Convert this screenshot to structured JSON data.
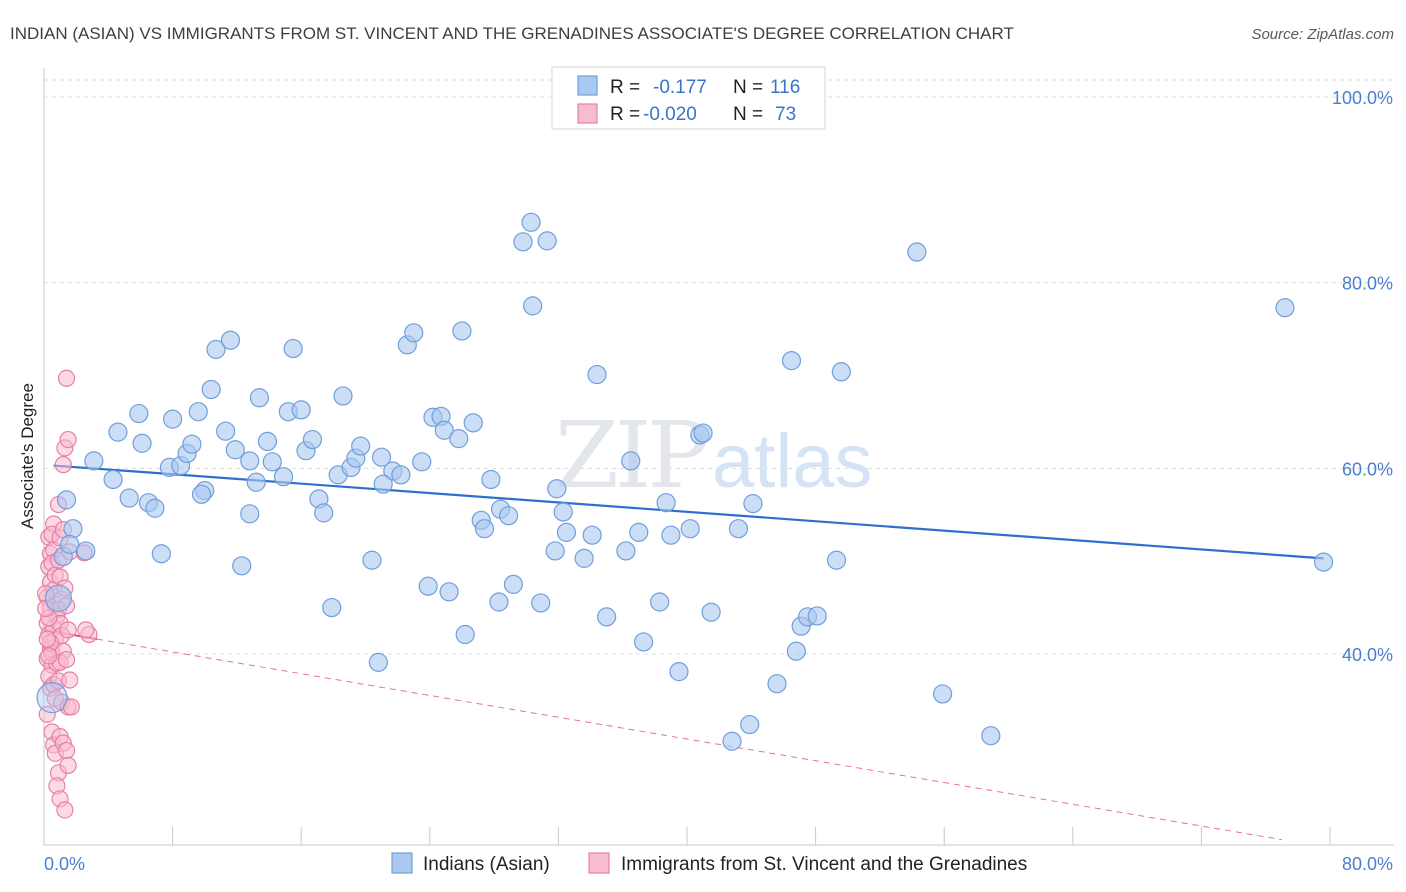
{
  "title": "INDIAN (ASIAN) VS IMMIGRANTS FROM ST. VINCENT AND THE GRENADINES ASSOCIATE'S DEGREE CORRELATION CHART",
  "source": "Source: ZipAtlas.com",
  "watermark": {
    "zip": "ZIP",
    "atlas": "atlas"
  },
  "legend": {
    "rows": [
      {
        "r_label": "R =",
        "r_value": "-0.177",
        "n_label": "N =",
        "n_value": "116"
      },
      {
        "r_label": "R =",
        "r_value": "-0.020",
        "n_label": "N =",
        "n_value": "73"
      }
    ]
  },
  "bottom_legend": [
    "Indians (Asian)",
    "Immigrants from St. Vincent and the Grenadines"
  ],
  "colors": {
    "blue_fill": "#aac8f0",
    "blue_stroke": "#6f9fdc",
    "blue_line": "#2f6fcc",
    "pink_fill": "#f7bcd0",
    "pink_stroke": "#e87fa5",
    "pink_line": "#e0507f",
    "grid": "#dcdcdc",
    "tick_text": "#4a7fd0"
  },
  "chart_data": {
    "type": "scatter",
    "title": "INDIAN (ASIAN) VS IMMIGRANTS FROM ST. VINCENT AND THE GRENADINES ASSOCIATE'S DEGREE CORRELATION CHART",
    "xlabel": "",
    "ylabel": "Associate's Degree",
    "xlim": [
      0,
      80
    ],
    "ylim": [
      20,
      102
    ],
    "x_tick_labels": [
      "0.0%",
      "80.0%"
    ],
    "y_ticks": [
      40,
      60,
      80,
      100
    ],
    "y_tick_labels": [
      "40.0%",
      "60.0%",
      "80.0%",
      "100.0%"
    ],
    "grid": true,
    "legend_position": "top-center",
    "series": [
      {
        "name": "Indians (Asian)",
        "color": "#6f9fdc",
        "r": -0.177,
        "n": 116,
        "trend": {
          "x": [
            0.6,
            79.6
          ],
          "y": [
            60.3,
            50.3
          ],
          "style": "solid"
        },
        "points": [
          [
            1.8,
            53.5
          ],
          [
            1.2,
            50.5
          ],
          [
            1.6,
            51.8
          ],
          [
            3.1,
            60.8
          ],
          [
            4.6,
            63.9
          ],
          [
            4.3,
            58.8
          ],
          [
            5.3,
            56.8
          ],
          [
            5.9,
            65.9
          ],
          [
            6.1,
            62.7
          ],
          [
            6.5,
            56.3
          ],
          [
            6.9,
            55.7
          ],
          [
            7.3,
            50.8
          ],
          [
            7.8,
            60.1
          ],
          [
            8.0,
            65.3
          ],
          [
            8.5,
            60.3
          ],
          [
            8.9,
            61.6
          ],
          [
            9.2,
            62.6
          ],
          [
            9.6,
            66.1
          ],
          [
            10.0,
            57.6
          ],
          [
            10.4,
            68.5
          ],
          [
            10.7,
            72.8
          ],
          [
            11.3,
            64.0
          ],
          [
            11.6,
            73.8
          ],
          [
            11.9,
            62.0
          ],
          [
            12.3,
            49.5
          ],
          [
            12.8,
            60.8
          ],
          [
            13.2,
            58.5
          ],
          [
            13.4,
            67.6
          ],
          [
            13.9,
            62.9
          ],
          [
            14.2,
            60.7
          ],
          [
            14.9,
            59.1
          ],
          [
            15.2,
            66.1
          ],
          [
            15.5,
            72.9
          ],
          [
            16.0,
            66.3
          ],
          [
            16.3,
            61.9
          ],
          [
            16.7,
            63.1
          ],
          [
            17.1,
            56.7
          ],
          [
            17.4,
            55.2
          ],
          [
            17.9,
            45.0
          ],
          [
            18.3,
            59.3
          ],
          [
            18.6,
            67.8
          ],
          [
            19.1,
            60.1
          ],
          [
            19.4,
            61.1
          ],
          [
            19.7,
            62.4
          ],
          [
            20.4,
            50.1
          ],
          [
            20.8,
            39.1
          ],
          [
            21.0,
            61.2
          ],
          [
            21.7,
            59.7
          ],
          [
            22.2,
            59.3
          ],
          [
            22.6,
            73.3
          ],
          [
            23.0,
            74.6
          ],
          [
            23.5,
            60.7
          ],
          [
            23.9,
            47.3
          ],
          [
            24.2,
            65.5
          ],
          [
            24.7,
            65.6
          ],
          [
            24.9,
            64.1
          ],
          [
            25.2,
            46.7
          ],
          [
            25.8,
            63.2
          ],
          [
            26.2,
            42.1
          ],
          [
            26.0,
            74.8
          ],
          [
            26.7,
            64.9
          ],
          [
            27.2,
            54.4
          ],
          [
            27.4,
            53.5
          ],
          [
            27.8,
            58.8
          ],
          [
            28.3,
            45.6
          ],
          [
            28.4,
            55.6
          ],
          [
            28.9,
            54.9
          ],
          [
            29.2,
            47.5
          ],
          [
            29.8,
            84.4
          ],
          [
            30.3,
            86.5
          ],
          [
            30.4,
            77.5
          ],
          [
            30.9,
            45.5
          ],
          [
            31.3,
            84.5
          ],
          [
            31.8,
            51.1
          ],
          [
            31.9,
            57.8
          ],
          [
            32.3,
            55.3
          ],
          [
            32.5,
            53.1
          ],
          [
            34.1,
            52.8
          ],
          [
            34.4,
            70.1
          ],
          [
            35.0,
            44.0
          ],
          [
            36.2,
            51.1
          ],
          [
            36.5,
            60.8
          ],
          [
            37.0,
            53.1
          ],
          [
            37.3,
            41.3
          ],
          [
            38.3,
            45.6
          ],
          [
            38.7,
            56.3
          ],
          [
            39.0,
            52.8
          ],
          [
            39.5,
            38.1
          ],
          [
            40.2,
            53.5
          ],
          [
            40.8,
            63.6
          ],
          [
            41.0,
            63.8
          ],
          [
            41.5,
            44.5
          ],
          [
            42.8,
            30.6
          ],
          [
            43.2,
            53.5
          ],
          [
            43.9,
            32.4
          ],
          [
            44.1,
            56.2
          ],
          [
            45.6,
            36.8
          ],
          [
            46.5,
            71.6
          ],
          [
            46.8,
            40.3
          ],
          [
            47.1,
            43.0
          ],
          [
            47.5,
            44.0
          ],
          [
            48.1,
            44.1
          ],
          [
            49.3,
            50.1
          ],
          [
            49.6,
            70.4
          ],
          [
            54.3,
            83.3
          ],
          [
            55.9,
            35.7
          ],
          [
            58.9,
            31.2
          ],
          [
            77.2,
            77.3
          ],
          [
            79.6,
            49.9
          ],
          [
            1.4,
            56.6
          ],
          [
            2.6,
            51.1
          ],
          [
            9.8,
            57.2
          ],
          [
            12.8,
            55.1
          ],
          [
            21.1,
            58.3
          ],
          [
            33.6,
            50.3
          ]
        ]
      },
      {
        "name": "Immigrants from St. Vincent and the Grenadines",
        "color": "#e87fa5",
        "r": -0.02,
        "n": 73,
        "trend": {
          "x": [
            0,
            3.3
          ],
          "y": [
            42.6,
            41.6
          ],
          "style": "solid",
          "extended_x": [
            3.3,
            77.0
          ],
          "extended_y": [
            41.6,
            20.0
          ]
        },
        "points": [
          [
            0.3,
            52.6
          ],
          [
            0.4,
            50.8
          ],
          [
            0.3,
            49.4
          ],
          [
            0.4,
            47.7
          ],
          [
            0.2,
            46.1
          ],
          [
            0.4,
            45.0
          ],
          [
            0.2,
            43.3
          ],
          [
            0.3,
            42.1
          ],
          [
            0.4,
            40.6
          ],
          [
            0.2,
            39.5
          ],
          [
            0.5,
            38.8
          ],
          [
            0.3,
            37.6
          ],
          [
            0.4,
            36.3
          ],
          [
            0.6,
            54.0
          ],
          [
            0.5,
            52.9
          ],
          [
            0.6,
            51.2
          ],
          [
            0.5,
            49.8
          ],
          [
            0.7,
            48.5
          ],
          [
            0.6,
            46.9
          ],
          [
            0.7,
            45.3
          ],
          [
            0.8,
            44.1
          ],
          [
            0.6,
            42.8
          ],
          [
            0.7,
            41.5
          ],
          [
            0.5,
            40.1
          ],
          [
            0.8,
            39.0
          ],
          [
            0.6,
            36.7
          ],
          [
            0.7,
            35.2
          ],
          [
            0.5,
            31.6
          ],
          [
            0.6,
            30.2
          ],
          [
            0.7,
            29.3
          ],
          [
            0.9,
            56.1
          ],
          [
            1.0,
            52.5
          ],
          [
            0.9,
            50.1
          ],
          [
            1.0,
            48.3
          ],
          [
            1.1,
            45.9
          ],
          [
            0.9,
            44.8
          ],
          [
            1.0,
            43.3
          ],
          [
            1.1,
            42.0
          ],
          [
            1.2,
            40.3
          ],
          [
            1.0,
            39.1
          ],
          [
            0.9,
            37.1
          ],
          [
            1.1,
            34.8
          ],
          [
            1.0,
            31.1
          ],
          [
            1.2,
            30.4
          ],
          [
            0.9,
            27.2
          ],
          [
            0.8,
            25.8
          ],
          [
            1.0,
            24.4
          ],
          [
            1.3,
            62.2
          ],
          [
            1.2,
            60.4
          ],
          [
            1.5,
            63.1
          ],
          [
            1.4,
            69.7
          ],
          [
            1.3,
            47.1
          ],
          [
            1.4,
            45.2
          ],
          [
            1.5,
            42.6
          ],
          [
            1.4,
            39.4
          ],
          [
            1.6,
            37.2
          ],
          [
            1.5,
            34.3
          ],
          [
            1.4,
            29.6
          ],
          [
            1.5,
            28.0
          ],
          [
            1.3,
            23.2
          ],
          [
            1.6,
            51.0
          ],
          [
            1.2,
            53.4
          ],
          [
            1.7,
            34.3
          ],
          [
            2.5,
            50.9
          ],
          [
            2.8,
            42.1
          ],
          [
            2.6,
            42.6
          ],
          [
            0.2,
            33.5
          ],
          [
            0.3,
            43.9
          ],
          [
            0.4,
            41.2
          ],
          [
            0.3,
            39.8
          ],
          [
            0.2,
            41.6
          ],
          [
            0.1,
            46.5
          ],
          [
            0.1,
            44.9
          ]
        ]
      }
    ]
  }
}
